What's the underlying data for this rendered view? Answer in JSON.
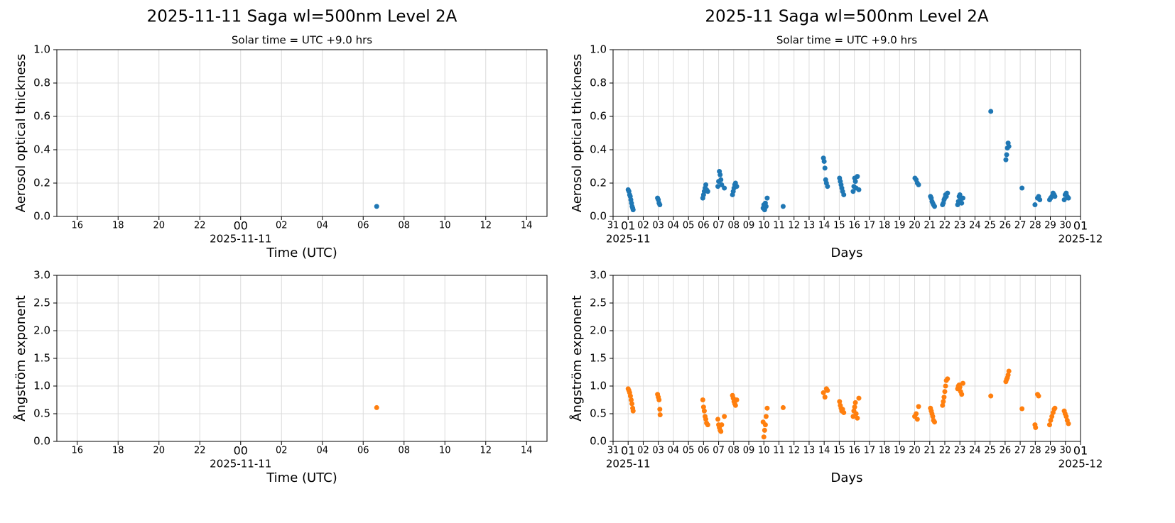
{
  "chart_data": [
    {
      "type": "scatter",
      "title": "2025-11-11  Saga  wl=500nm  Level 2A",
      "subtitle": "Solar time = UTC +9.0 hrs",
      "xlabel": "Time (UTC)",
      "ylabel": "Aerosol optical thickness",
      "color": "#1f77b4",
      "grid": true,
      "x": [
        6.66
      ],
      "values": [
        0.06
      ],
      "xlim": [
        -9,
        15
      ],
      "ylim": [
        0,
        1
      ],
      "xticks": [
        {
          "value": -8,
          "label": "16"
        },
        {
          "value": -6,
          "label": "18"
        },
        {
          "value": -4,
          "label": "20"
        },
        {
          "value": -2,
          "label": "22"
        },
        {
          "value": 0,
          "label": "00"
        },
        {
          "value": 2,
          "label": "02"
        },
        {
          "value": 4,
          "label": "04"
        },
        {
          "value": 6,
          "label": "06"
        },
        {
          "value": 8,
          "label": "08"
        },
        10,
        12,
        14
      ],
      "xdate_labels": [
        {
          "value": 0,
          "label": "2025-11-11"
        }
      ],
      "yticks": [
        {
          "value": 0,
          "label": "0.0"
        },
        0.2,
        0.4,
        0.6,
        0.8,
        {
          "value": 1,
          "label": "1.0"
        }
      ]
    },
    {
      "type": "scatter",
      "title": "2025-11  Saga  wl=500nm  Level 2A",
      "subtitle": "Solar time = UTC +9.0 hrs",
      "xlabel": "Days",
      "ylabel": "Aerosol optical thickness",
      "color": "#1f77b4",
      "grid": true,
      "x": [
        1.0,
        1.05,
        1.1,
        1.14,
        1.18,
        1.22,
        1.26,
        1.3,
        1.33,
        2.95,
        3.0,
        3.05,
        3.1,
        5.95,
        6.0,
        6.05,
        6.1,
        6.15,
        6.2,
        6.28,
        6.95,
        7.0,
        7.05,
        7.1,
        7.15,
        7.2,
        7.38,
        7.92,
        7.97,
        8.02,
        8.07,
        8.12,
        8.2,
        9.95,
        10.0,
        10.05,
        10.1,
        10.15,
        10.22,
        11.28,
        13.95,
        14.0,
        14.05,
        14.1,
        14.15,
        14.22,
        15.02,
        15.07,
        15.12,
        15.17,
        15.22,
        15.3,
        15.92,
        15.97,
        16.02,
        16.07,
        16.12,
        16.2,
        16.3,
        20.02,
        20.1,
        20.18,
        20.26,
        21.05,
        21.1,
        21.15,
        21.2,
        21.25,
        21.32,
        21.85,
        21.9,
        21.95,
        22.0,
        22.05,
        22.1,
        22.18,
        22.85,
        22.9,
        22.95,
        23.0,
        23.05,
        23.12,
        23.2,
        25.05,
        26.05,
        26.1,
        26.15,
        26.2,
        26.25,
        27.12,
        27.98,
        28.15,
        28.22,
        28.3,
        28.95,
        29.02,
        29.1,
        29.18,
        29.25,
        29.3,
        29.92,
        29.98,
        30.05,
        30.12,
        30.2
      ],
      "values": [
        0.16,
        0.15,
        0.13,
        0.12,
        0.1,
        0.08,
        0.06,
        0.05,
        0.04,
        0.11,
        0.1,
        0.08,
        0.07,
        0.11,
        0.13,
        0.15,
        0.17,
        0.19,
        0.16,
        0.15,
        0.18,
        0.21,
        0.27,
        0.25,
        0.22,
        0.19,
        0.17,
        0.13,
        0.15,
        0.17,
        0.19,
        0.2,
        0.18,
        0.05,
        0.07,
        0.04,
        0.08,
        0.06,
        0.11,
        0.06,
        0.35,
        0.33,
        0.29,
        0.22,
        0.2,
        0.18,
        0.23,
        0.21,
        0.19,
        0.17,
        0.15,
        0.13,
        0.15,
        0.18,
        0.23,
        0.21,
        0.17,
        0.24,
        0.16,
        0.23,
        0.22,
        0.2,
        0.19,
        0.12,
        0.11,
        0.09,
        0.08,
        0.07,
        0.06,
        0.07,
        0.08,
        0.1,
        0.11,
        0.13,
        0.12,
        0.14,
        0.07,
        0.09,
        0.12,
        0.13,
        0.1,
        0.08,
        0.11,
        0.63,
        0.34,
        0.37,
        0.41,
        0.44,
        0.42,
        0.17,
        0.07,
        0.11,
        0.12,
        0.1,
        0.1,
        0.11,
        0.12,
        0.14,
        0.13,
        0.12,
        0.1,
        0.13,
        0.14,
        0.12,
        0.11
      ],
      "xlim": [
        0,
        31
      ],
      "ylim": [
        0,
        1
      ],
      "xticks": [
        {
          "value": 0,
          "label": "31"
        },
        {
          "value": 1,
          "label": "01"
        },
        {
          "value": 2,
          "label": "02"
        },
        {
          "value": 3,
          "label": "03"
        },
        {
          "value": 4,
          "label": "04"
        },
        {
          "value": 5,
          "label": "05"
        },
        {
          "value": 6,
          "label": "06"
        },
        {
          "value": 7,
          "label": "07"
        },
        {
          "value": 8,
          "label": "08"
        },
        {
          "value": 9,
          "label": "09"
        },
        10,
        11,
        12,
        13,
        14,
        15,
        16,
        17,
        18,
        19,
        20,
        21,
        22,
        23,
        24,
        25,
        26,
        27,
        28,
        29,
        30,
        {
          "value": 31,
          "label": "01"
        }
      ],
      "xdate_labels": [
        {
          "value": 1,
          "label": "2025-11"
        },
        {
          "value": 31,
          "label": "2025-12"
        }
      ],
      "yticks": [
        {
          "value": 0,
          "label": "0.0"
        },
        0.2,
        0.4,
        0.6,
        0.8,
        {
          "value": 1,
          "label": "1.0"
        }
      ]
    },
    {
      "type": "scatter",
      "xlabel": "Time (UTC)",
      "ylabel": "Ångström exponent",
      "color": "#ff7f0e",
      "grid": true,
      "x": [
        6.66
      ],
      "values": [
        0.61
      ],
      "xlim": [
        -9,
        15
      ],
      "ylim": [
        0,
        3
      ],
      "xticks": [
        {
          "value": -8,
          "label": "16"
        },
        {
          "value": -6,
          "label": "18"
        },
        {
          "value": -4,
          "label": "20"
        },
        {
          "value": -2,
          "label": "22"
        },
        {
          "value": 0,
          "label": "00"
        },
        {
          "value": 2,
          "label": "02"
        },
        {
          "value": 4,
          "label": "04"
        },
        {
          "value": 6,
          "label": "06"
        },
        {
          "value": 8,
          "label": "08"
        },
        10,
        12,
        14
      ],
      "xdate_labels": [
        {
          "value": 0,
          "label": "2025-11-11"
        }
      ],
      "yticks": [
        {
          "value": 0,
          "label": "0.0"
        },
        0.5,
        {
          "value": 1,
          "label": "1.0"
        },
        1.5,
        {
          "value": 2,
          "label": "2.0"
        },
        2.5,
        {
          "value": 3,
          "label": "3.0"
        }
      ]
    },
    {
      "type": "scatter",
      "xlabel": "Days",
      "ylabel": "Ångström exponent",
      "color": "#ff7f0e",
      "grid": true,
      "x": [
        1.0,
        1.05,
        1.1,
        1.15,
        1.2,
        1.25,
        1.3,
        1.33,
        2.95,
        3.0,
        3.05,
        3.1,
        3.12,
        5.95,
        6.0,
        6.05,
        6.1,
        6.15,
        6.2,
        6.28,
        6.95,
        7.0,
        7.05,
        7.1,
        7.15,
        7.2,
        7.38,
        7.92,
        7.97,
        8.02,
        8.07,
        8.12,
        8.2,
        9.95,
        10.0,
        10.05,
        10.1,
        10.15,
        10.22,
        11.28,
        13.95,
        14.05,
        14.15,
        14.22,
        15.02,
        15.07,
        15.12,
        15.17,
        15.22,
        15.3,
        15.92,
        15.97,
        16.02,
        16.07,
        16.12,
        16.2,
        16.3,
        20.0,
        20.1,
        20.18,
        20.26,
        21.05,
        21.1,
        21.15,
        21.2,
        21.25,
        21.32,
        21.85,
        21.9,
        21.95,
        22.0,
        22.05,
        22.1,
        22.18,
        22.85,
        22.9,
        22.95,
        23.0,
        23.05,
        23.12,
        23.2,
        25.05,
        26.05,
        26.1,
        26.15,
        26.2,
        26.25,
        27.12,
        27.98,
        28.02,
        28.15,
        28.22,
        28.95,
        29.02,
        29.1,
        29.18,
        29.25,
        29.3,
        29.92,
        29.98,
        30.05,
        30.12,
        30.2
      ],
      "values": [
        0.95,
        0.92,
        0.88,
        0.82,
        0.75,
        0.68,
        0.6,
        0.55,
        0.85,
        0.8,
        0.75,
        0.58,
        0.48,
        0.75,
        0.62,
        0.55,
        0.45,
        0.4,
        0.33,
        0.3,
        0.4,
        0.3,
        0.25,
        0.2,
        0.18,
        0.3,
        0.45,
        0.83,
        0.78,
        0.72,
        0.68,
        0.65,
        0.75,
        0.35,
        0.08,
        0.2,
        0.3,
        0.45,
        0.6,
        0.61,
        0.88,
        0.8,
        0.95,
        0.92,
        0.72,
        0.65,
        0.6,
        0.55,
        0.58,
        0.52,
        0.45,
        0.55,
        0.62,
        0.7,
        0.5,
        0.42,
        0.78,
        0.45,
        0.5,
        0.4,
        0.63,
        0.6,
        0.55,
        0.5,
        0.45,
        0.38,
        0.35,
        0.65,
        0.72,
        0.8,
        0.9,
        1.0,
        1.1,
        1.13,
        0.95,
        1.0,
        1.02,
        0.98,
        0.9,
        0.85,
        1.05,
        0.82,
        1.08,
        1.12,
        1.15,
        1.2,
        1.27,
        0.59,
        0.3,
        0.25,
        0.85,
        0.82,
        0.3,
        0.38,
        0.45,
        0.52,
        0.58,
        0.6,
        0.55,
        0.5,
        0.45,
        0.38,
        0.32
      ],
      "xlim": [
        0,
        31
      ],
      "ylim": [
        0,
        3
      ],
      "xticks": [
        {
          "value": 0,
          "label": "31"
        },
        {
          "value": 1,
          "label": "01"
        },
        {
          "value": 2,
          "label": "02"
        },
        {
          "value": 3,
          "label": "03"
        },
        {
          "value": 4,
          "label": "04"
        },
        {
          "value": 5,
          "label": "05"
        },
        {
          "value": 6,
          "label": "06"
        },
        {
          "value": 7,
          "label": "07"
        },
        {
          "value": 8,
          "label": "08"
        },
        {
          "value": 9,
          "label": "09"
        },
        10,
        11,
        12,
        13,
        14,
        15,
        16,
        17,
        18,
        19,
        20,
        21,
        22,
        23,
        24,
        25,
        26,
        27,
        28,
        29,
        30,
        {
          "value": 31,
          "label": "01"
        }
      ],
      "xdate_labels": [
        {
          "value": 1,
          "label": "2025-11"
        },
        {
          "value": 31,
          "label": "2025-12"
        }
      ],
      "yticks": [
        {
          "value": 0,
          "label": "0.0"
        },
        0.5,
        {
          "value": 1,
          "label": "1.0"
        },
        1.5,
        {
          "value": 2,
          "label": "2.0"
        },
        2.5,
        {
          "value": 3,
          "label": "3.0"
        }
      ]
    }
  ]
}
